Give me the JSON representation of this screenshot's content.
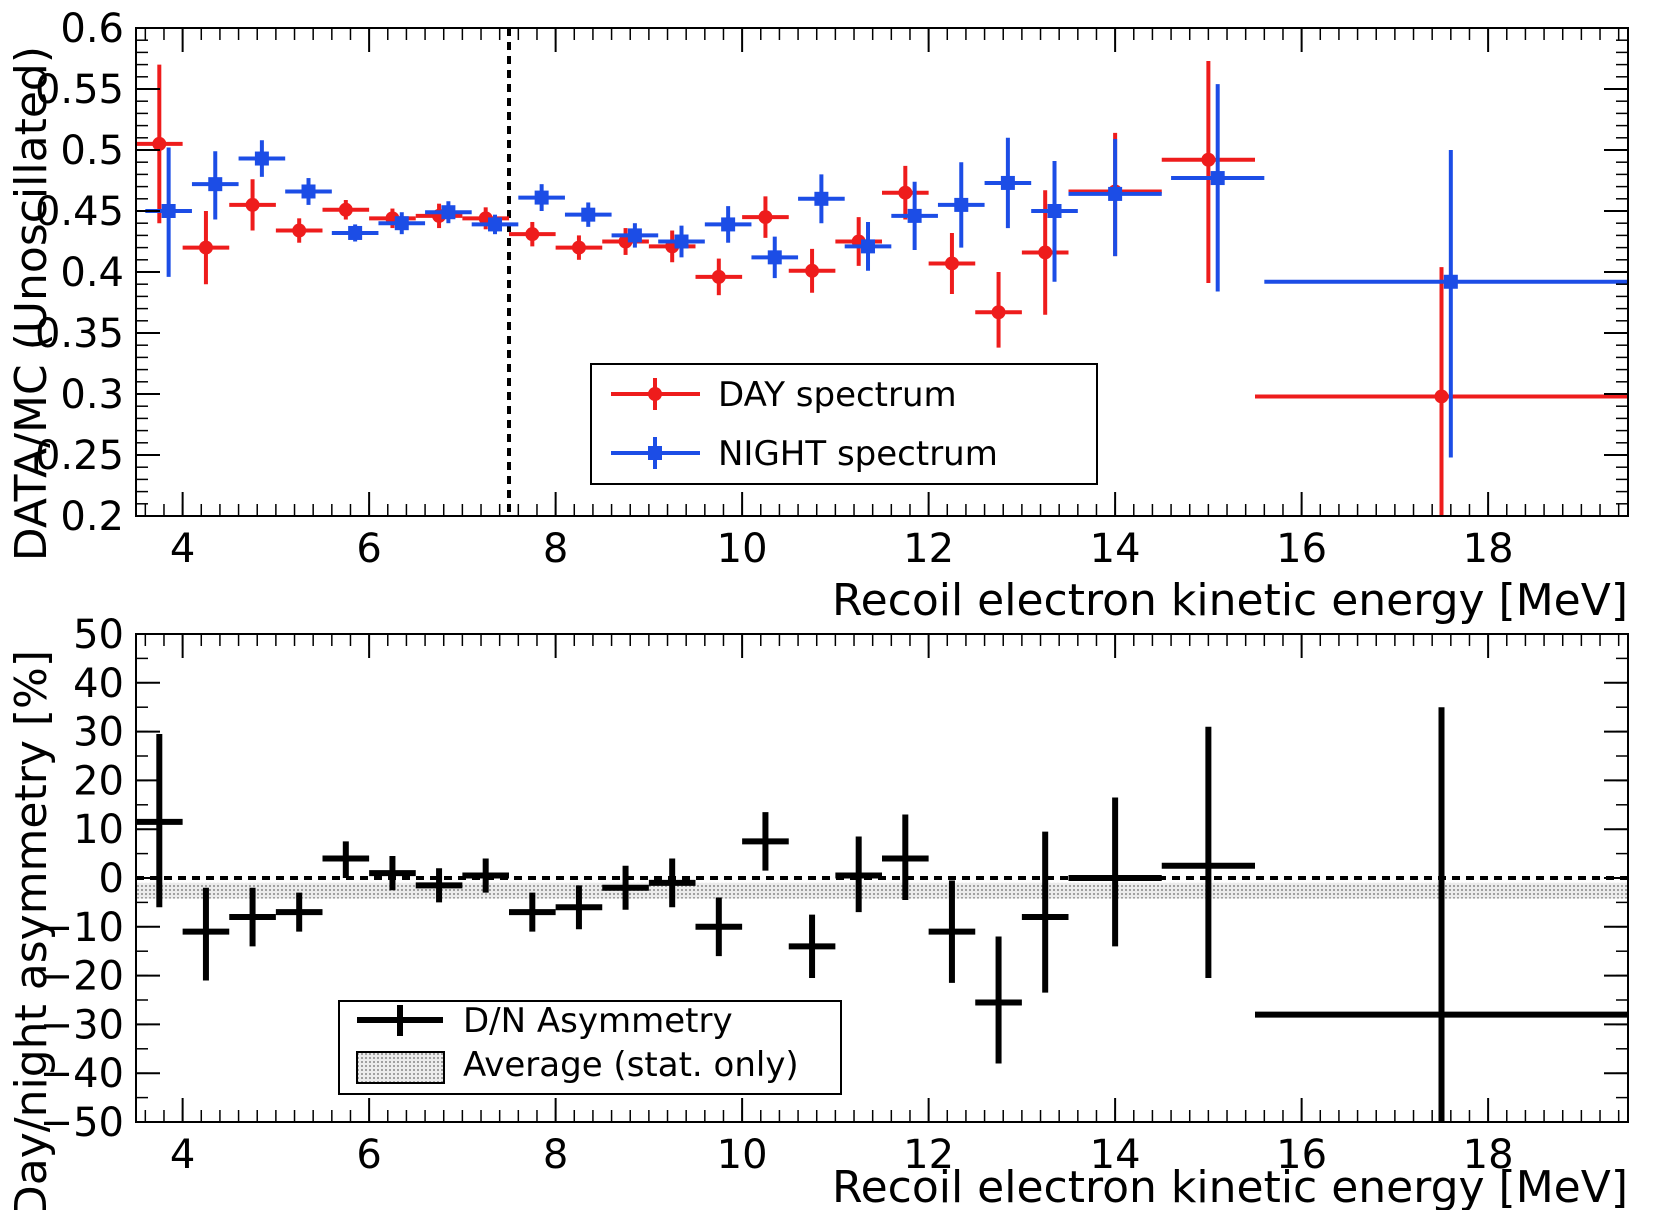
{
  "chart_data": [
    {
      "type": "scatter",
      "xlabel": "Recoil electron kinetic energy [MeV]",
      "ylabel": "DATA/MC (Unoscillated)",
      "xlim": [
        3.5,
        19.5
      ],
      "ylim": [
        0.2,
        0.6
      ],
      "x_ticks": [
        "4",
        "6",
        "8",
        "10",
        "12",
        "14",
        "16",
        "18"
      ],
      "y_ticks": [
        "0.2",
        "0.25",
        "0.3",
        "0.35",
        "0.4",
        "0.45",
        "0.5",
        "0.55",
        "0.6"
      ],
      "grid": false,
      "legend_position": "center-bottom",
      "reference_line": {
        "x": 7.5,
        "style": "dashed"
      },
      "series": [
        {
          "name": "DAY spectrum",
          "color": "#ee1c1c",
          "marker": "circle",
          "points": [
            {
              "x": 3.75,
              "y": 0.505,
              "xlo": 3.5,
              "xhi": 4.0,
              "ylo": 0.44,
              "yhi": 0.57
            },
            {
              "x": 4.25,
              "y": 0.42,
              "xlo": 4.0,
              "xhi": 4.5,
              "ylo": 0.39,
              "yhi": 0.45
            },
            {
              "x": 4.75,
              "y": 0.455,
              "xlo": 4.5,
              "xhi": 5.0,
              "ylo": 0.434,
              "yhi": 0.476
            },
            {
              "x": 5.25,
              "y": 0.434,
              "xlo": 5.0,
              "xhi": 5.5,
              "ylo": 0.424,
              "yhi": 0.444
            },
            {
              "x": 5.75,
              "y": 0.451,
              "xlo": 5.5,
              "xhi": 6.0,
              "ylo": 0.443,
              "yhi": 0.459
            },
            {
              "x": 6.25,
              "y": 0.444,
              "xlo": 6.0,
              "xhi": 6.5,
              "ylo": 0.436,
              "yhi": 0.452
            },
            {
              "x": 6.75,
              "y": 0.446,
              "xlo": 6.5,
              "xhi": 7.0,
              "ylo": 0.436,
              "yhi": 0.456
            },
            {
              "x": 7.25,
              "y": 0.444,
              "xlo": 7.0,
              "xhi": 7.5,
              "ylo": 0.435,
              "yhi": 0.453
            },
            {
              "x": 7.75,
              "y": 0.431,
              "xlo": 7.5,
              "xhi": 8.0,
              "ylo": 0.421,
              "yhi": 0.441
            },
            {
              "x": 8.25,
              "y": 0.42,
              "xlo": 8.0,
              "xhi": 8.5,
              "ylo": 0.41,
              "yhi": 0.43
            },
            {
              "x": 8.75,
              "y": 0.425,
              "xlo": 8.5,
              "xhi": 9.0,
              "ylo": 0.414,
              "yhi": 0.436
            },
            {
              "x": 9.25,
              "y": 0.421,
              "xlo": 9.0,
              "xhi": 9.5,
              "ylo": 0.408,
              "yhi": 0.434
            },
            {
              "x": 9.75,
              "y": 0.396,
              "xlo": 9.5,
              "xhi": 10.0,
              "ylo": 0.381,
              "yhi": 0.411
            },
            {
              "x": 10.25,
              "y": 0.445,
              "xlo": 10.0,
              "xhi": 10.5,
              "ylo": 0.428,
              "yhi": 0.462
            },
            {
              "x": 10.75,
              "y": 0.401,
              "xlo": 10.5,
              "xhi": 11.0,
              "ylo": 0.383,
              "yhi": 0.419
            },
            {
              "x": 11.25,
              "y": 0.425,
              "xlo": 11.0,
              "xhi": 11.5,
              "ylo": 0.405,
              "yhi": 0.445
            },
            {
              "x": 11.75,
              "y": 0.465,
              "xlo": 11.5,
              "xhi": 12.0,
              "ylo": 0.443,
              "yhi": 0.487
            },
            {
              "x": 12.25,
              "y": 0.407,
              "xlo": 12.0,
              "xhi": 12.5,
              "ylo": 0.382,
              "yhi": 0.432
            },
            {
              "x": 12.75,
              "y": 0.367,
              "xlo": 12.5,
              "xhi": 13.0,
              "ylo": 0.338,
              "yhi": 0.4
            },
            {
              "x": 13.25,
              "y": 0.416,
              "xlo": 13.0,
              "xhi": 13.5,
              "ylo": 0.365,
              "yhi": 0.467
            },
            {
              "x": 14.0,
              "y": 0.466,
              "xlo": 13.5,
              "xhi": 14.5,
              "ylo": 0.413,
              "yhi": 0.514
            },
            {
              "x": 15.0,
              "y": 0.492,
              "xlo": 14.5,
              "xhi": 15.5,
              "ylo": 0.391,
              "yhi": 0.573
            },
            {
              "x": 17.5,
              "y": 0.298,
              "xlo": 15.5,
              "xhi": 19.5,
              "ylo": 0.2,
              "yhi": 0.404
            }
          ]
        },
        {
          "name": "NIGHT spectrum",
          "color": "#1c4de6",
          "marker": "square",
          "points": [
            {
              "x": 3.85,
              "y": 0.45,
              "xlo": 3.6,
              "xhi": 4.1,
              "ylo": 0.396,
              "yhi": 0.502
            },
            {
              "x": 4.35,
              "y": 0.472,
              "xlo": 4.1,
              "xhi": 4.6,
              "ylo": 0.443,
              "yhi": 0.499
            },
            {
              "x": 4.85,
              "y": 0.493,
              "xlo": 4.6,
              "xhi": 5.1,
              "ylo": 0.478,
              "yhi": 0.508
            },
            {
              "x": 5.35,
              "y": 0.466,
              "xlo": 5.1,
              "xhi": 5.6,
              "ylo": 0.455,
              "yhi": 0.477
            },
            {
              "x": 5.85,
              "y": 0.432,
              "xlo": 5.6,
              "xhi": 6.1,
              "ylo": 0.425,
              "yhi": 0.439
            },
            {
              "x": 6.35,
              "y": 0.44,
              "xlo": 6.1,
              "xhi": 6.6,
              "ylo": 0.431,
              "yhi": 0.449
            },
            {
              "x": 6.85,
              "y": 0.449,
              "xlo": 6.6,
              "xhi": 7.1,
              "ylo": 0.44,
              "yhi": 0.458
            },
            {
              "x": 7.35,
              "y": 0.439,
              "xlo": 7.1,
              "xhi": 7.6,
              "ylo": 0.431,
              "yhi": 0.447
            },
            {
              "x": 7.85,
              "y": 0.461,
              "xlo": 7.6,
              "xhi": 8.1,
              "ylo": 0.45,
              "yhi": 0.472
            },
            {
              "x": 8.35,
              "y": 0.447,
              "xlo": 8.1,
              "xhi": 8.6,
              "ylo": 0.437,
              "yhi": 0.457
            },
            {
              "x": 8.85,
              "y": 0.43,
              "xlo": 8.6,
              "xhi": 9.1,
              "ylo": 0.42,
              "yhi": 0.44
            },
            {
              "x": 9.35,
              "y": 0.425,
              "xlo": 9.1,
              "xhi": 9.6,
              "ylo": 0.412,
              "yhi": 0.438
            },
            {
              "x": 9.85,
              "y": 0.439,
              "xlo": 9.6,
              "xhi": 10.1,
              "ylo": 0.424,
              "yhi": 0.454
            },
            {
              "x": 10.35,
              "y": 0.412,
              "xlo": 10.1,
              "xhi": 10.6,
              "ylo": 0.395,
              "yhi": 0.429
            },
            {
              "x": 10.85,
              "y": 0.46,
              "xlo": 10.6,
              "xhi": 11.1,
              "ylo": 0.44,
              "yhi": 0.48
            },
            {
              "x": 11.35,
              "y": 0.421,
              "xlo": 11.1,
              "xhi": 11.6,
              "ylo": 0.401,
              "yhi": 0.441
            },
            {
              "x": 11.85,
              "y": 0.446,
              "xlo": 11.6,
              "xhi": 12.1,
              "ylo": 0.418,
              "yhi": 0.474
            },
            {
              "x": 12.35,
              "y": 0.455,
              "xlo": 12.1,
              "xhi": 12.6,
              "ylo": 0.42,
              "yhi": 0.49
            },
            {
              "x": 12.85,
              "y": 0.473,
              "xlo": 12.6,
              "xhi": 13.1,
              "ylo": 0.436,
              "yhi": 0.51
            },
            {
              "x": 13.35,
              "y": 0.45,
              "xlo": 13.1,
              "xhi": 13.6,
              "ylo": 0.392,
              "yhi": 0.491
            },
            {
              "x": 14.0,
              "y": 0.464,
              "xlo": 13.5,
              "xhi": 14.5,
              "ylo": 0.413,
              "yhi": 0.509
            },
            {
              "x": 15.1,
              "y": 0.477,
              "xlo": 14.6,
              "xhi": 15.6,
              "ylo": 0.384,
              "yhi": 0.554
            },
            {
              "x": 17.6,
              "y": 0.392,
              "xlo": 15.6,
              "xhi": 19.5,
              "ylo": 0.248,
              "yhi": 0.5
            }
          ]
        }
      ]
    },
    {
      "type": "scatter",
      "xlabel": "Recoil electron kinetic energy [MeV]",
      "ylabel": "Day/night asymmetry [%]",
      "xlim": [
        3.5,
        19.5
      ],
      "ylim": [
        -50,
        50
      ],
      "x_ticks": [
        "4",
        "6",
        "8",
        "10",
        "12",
        "14",
        "16",
        "18"
      ],
      "y_ticks": [
        "−50",
        "−40",
        "−30",
        "−20",
        "−10",
        "0",
        "10",
        "20",
        "30",
        "40",
        "50"
      ],
      "grid": false,
      "legend_position": "bottom-left",
      "reference_line": {
        "y": 0,
        "style": "dashed"
      },
      "band": {
        "name": "Average (stat. only)",
        "ylo": -4.2,
        "yhi": -1.0,
        "color": "#c9c9c9"
      },
      "series": [
        {
          "name": "D/N Asymmetry",
          "color": "#000000",
          "points": [
            {
              "x": 3.75,
              "y": 11.5,
              "xlo": 3.5,
              "xhi": 4.0,
              "ylo": -6,
              "yhi": 29.5
            },
            {
              "x": 4.25,
              "y": -11,
              "xlo": 4.0,
              "xhi": 4.5,
              "ylo": -21,
              "yhi": -2
            },
            {
              "x": 4.75,
              "y": -8,
              "xlo": 4.5,
              "xhi": 5.0,
              "ylo": -14,
              "yhi": -2
            },
            {
              "x": 5.25,
              "y": -7,
              "xlo": 5.0,
              "xhi": 5.5,
              "ylo": -11,
              "yhi": -3
            },
            {
              "x": 5.75,
              "y": 4,
              "xlo": 5.5,
              "xhi": 6.0,
              "ylo": 0,
              "yhi": 7.5
            },
            {
              "x": 6.25,
              "y": 1,
              "xlo": 6.0,
              "xhi": 6.5,
              "ylo": -2.5,
              "yhi": 4.5
            },
            {
              "x": 6.75,
              "y": -1.5,
              "xlo": 6.5,
              "xhi": 7.0,
              "ylo": -5,
              "yhi": 2
            },
            {
              "x": 7.25,
              "y": 0.5,
              "xlo": 7.0,
              "xhi": 7.5,
              "ylo": -3,
              "yhi": 4
            },
            {
              "x": 7.75,
              "y": -7,
              "xlo": 7.5,
              "xhi": 8.0,
              "ylo": -11,
              "yhi": -3
            },
            {
              "x": 8.25,
              "y": -6,
              "xlo": 8.0,
              "xhi": 8.5,
              "ylo": -10.5,
              "yhi": -1.5
            },
            {
              "x": 8.75,
              "y": -2,
              "xlo": 8.5,
              "xhi": 9.0,
              "ylo": -6.5,
              "yhi": 2.5
            },
            {
              "x": 9.25,
              "y": -1,
              "xlo": 9.0,
              "xhi": 9.5,
              "ylo": -6,
              "yhi": 4
            },
            {
              "x": 9.75,
              "y": -10,
              "xlo": 9.5,
              "xhi": 10.0,
              "ylo": -16,
              "yhi": -4
            },
            {
              "x": 10.25,
              "y": 7.5,
              "xlo": 10.0,
              "xhi": 10.5,
              "ylo": 1.5,
              "yhi": 13.5
            },
            {
              "x": 10.75,
              "y": -14,
              "xlo": 10.5,
              "xhi": 11.0,
              "ylo": -20.5,
              "yhi": -7.5
            },
            {
              "x": 11.25,
              "y": 0.5,
              "xlo": 11.0,
              "xhi": 11.5,
              "ylo": -7,
              "yhi": 8.5
            },
            {
              "x": 11.75,
              "y": 4,
              "xlo": 11.5,
              "xhi": 12.0,
              "ylo": -4.5,
              "yhi": 13
            },
            {
              "x": 12.25,
              "y": -11,
              "xlo": 12.0,
              "xhi": 12.5,
              "ylo": -21.5,
              "yhi": -0.5
            },
            {
              "x": 12.75,
              "y": -25.5,
              "xlo": 12.5,
              "xhi": 13.0,
              "ylo": -38,
              "yhi": -12
            },
            {
              "x": 13.25,
              "y": -8,
              "xlo": 13.0,
              "xhi": 13.5,
              "ylo": -23.5,
              "yhi": 9.5
            },
            {
              "x": 14.0,
              "y": 0,
              "xlo": 13.5,
              "xhi": 14.5,
              "ylo": -14,
              "yhi": 16.5
            },
            {
              "x": 15.0,
              "y": 2.5,
              "xlo": 14.5,
              "xhi": 15.5,
              "ylo": -20.5,
              "yhi": 31
            },
            {
              "x": 17.5,
              "y": -28,
              "xlo": 15.5,
              "xhi": 19.5,
              "ylo": -50,
              "yhi": 35
            }
          ]
        }
      ]
    }
  ]
}
